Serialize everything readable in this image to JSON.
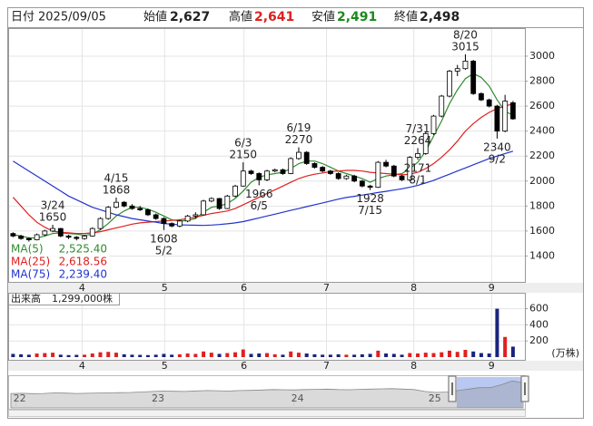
{
  "chart_data": {
    "type": "candlestick",
    "header": {
      "date_label": "日付",
      "date": "2025/09/05",
      "open_label": "始値",
      "open": {
        "value": 2627,
        "label": "2,627"
      },
      "high_label": "高値",
      "high": {
        "value": 2641,
        "label": "2,641"
      },
      "low_label": "安値",
      "low": {
        "value": 2491,
        "label": "2,491"
      },
      "close_label": "終値",
      "close": {
        "value": 2498,
        "label": "2,498"
      }
    },
    "xlim": [
      -0.5,
      64.5
    ],
    "xticks": [
      {
        "value": 8.7,
        "label": "4"
      },
      {
        "value": 19.1,
        "label": "5"
      },
      {
        "value": 29.1,
        "label": "6"
      },
      {
        "value": 39.5,
        "label": "7"
      },
      {
        "value": 50.5,
        "label": "8"
      },
      {
        "value": 60.3,
        "label": "9"
      }
    ],
    "ylim": [
      1200,
      3210
    ],
    "yticks": [
      1400,
      1600,
      1800,
      2000,
      2200,
      2400,
      2600,
      2800,
      3000
    ],
    "grid": true,
    "up_color": "#ffffff",
    "down_color": "#000000",
    "open": [
      1580,
      1560,
      1540,
      1530,
      1570,
      1600,
      1620,
      1560,
      1550,
      1540,
      1560,
      1620,
      1700,
      1790,
      1830,
      1800,
      1780,
      1770,
      1730,
      1700,
      1660,
      1640,
      1680,
      1720,
      1730,
      1840,
      1860,
      1780,
      1880,
      1960,
      2080,
      2060,
      2010,
      2080,
      2090,
      2060,
      2180,
      2230,
      2140,
      2110,
      2080,
      2060,
      2020,
      2040,
      2000,
      1960,
      1950,
      2150,
      2120,
      2040,
      2010,
      2190,
      2220,
      2380,
      2520,
      2680,
      2880,
      2900,
      2960,
      2700,
      2650,
      2600,
      2400,
      2627
    ],
    "high": [
      1590,
      1570,
      1550,
      1580,
      1610,
      1650,
      1625,
      1570,
      1560,
      1570,
      1630,
      1710,
      1800,
      1868,
      1840,
      1815,
      1800,
      1780,
      1740,
      1710,
      1670,
      1690,
      1730,
      1750,
      1850,
      1870,
      1865,
      1890,
      1970,
      2150,
      2090,
      2070,
      2090,
      2100,
      2100,
      2190,
      2270,
      2240,
      2150,
      2120,
      2090,
      2070,
      2050,
      2050,
      2010,
      1970,
      2160,
      2170,
      2130,
      2050,
      2200,
      2264,
      2390,
      2530,
      2690,
      2890,
      2930,
      3015,
      2970,
      2710,
      2660,
      2610,
      2690,
      2641
    ],
    "low": [
      1550,
      1530,
      1515,
      1525,
      1560,
      1590,
      1550,
      1535,
      1525,
      1530,
      1555,
      1610,
      1690,
      1780,
      1790,
      1770,
      1760,
      1720,
      1690,
      1608,
      1630,
      1630,
      1670,
      1700,
      1725,
      1830,
      1770,
      1775,
      1870,
      1955,
      2050,
      1966,
      2000,
      2070,
      2050,
      2055,
      2170,
      2130,
      2100,
      2070,
      2050,
      2010,
      2010,
      1990,
      1950,
      1928,
      1945,
      2110,
      2030,
      2000,
      2000,
      2171,
      2210,
      2370,
      2510,
      2670,
      2840,
      2890,
      2690,
      2640,
      2590,
      2340,
      2390,
      2491
    ],
    "close": [
      1560,
      1540,
      1530,
      1570,
      1600,
      1620,
      1560,
      1550,
      1540,
      1560,
      1620,
      1700,
      1790,
      1830,
      1800,
      1780,
      1770,
      1730,
      1700,
      1660,
      1640,
      1680,
      1720,
      1730,
      1840,
      1860,
      1780,
      1880,
      1960,
      2080,
      2060,
      2010,
      2080,
      2090,
      2060,
      2180,
      2230,
      2140,
      2110,
      2080,
      2060,
      2020,
      2040,
      2000,
      1960,
      1950,
      2150,
      2120,
      2040,
      2010,
      2190,
      2220,
      2380,
      2520,
      2680,
      2880,
      2900,
      2960,
      2700,
      2650,
      2600,
      2400,
      2640,
      2498
    ],
    "series": [
      {
        "name": "MA(5)",
        "color": "#2e8b2e",
        "last": {
          "value": 2525.4,
          "label": "2,525.40"
        },
        "values": [
          1570,
          1560,
          1545,
          1545,
          1560,
          1580,
          1585,
          1580,
          1575,
          1565,
          1575,
          1610,
          1660,
          1720,
          1760,
          1790,
          1790,
          1775,
          1750,
          1720,
          1690,
          1680,
          1685,
          1700,
          1750,
          1790,
          1800,
          1820,
          1860,
          1920,
          1990,
          2030,
          2050,
          2060,
          2070,
          2100,
          2140,
          2160,
          2160,
          2140,
          2110,
          2080,
          2060,
          2040,
          2020,
          1990,
          2020,
          2040,
          2050,
          2060,
          2100,
          2150,
          2240,
          2360,
          2480,
          2620,
          2730,
          2820,
          2860,
          2830,
          2760,
          2650,
          2560,
          2525.4
        ]
      },
      {
        "name": "MA(25)",
        "color": "#e02020",
        "last": {
          "value": 2618.56,
          "label": "2,618.56"
        },
        "values": [
          1870,
          1800,
          1730,
          1670,
          1630,
          1600,
          1590,
          1585,
          1580,
          1580,
          1585,
          1595,
          1610,
          1625,
          1640,
          1655,
          1665,
          1670,
          1675,
          1680,
          1685,
          1690,
          1700,
          1710,
          1725,
          1740,
          1750,
          1760,
          1780,
          1810,
          1840,
          1870,
          1900,
          1930,
          1960,
          1990,
          2020,
          2040,
          2055,
          2065,
          2075,
          2080,
          2085,
          2085,
          2080,
          2070,
          2065,
          2060,
          2055,
          2050,
          2055,
          2070,
          2100,
          2140,
          2190,
          2250,
          2320,
          2400,
          2460,
          2510,
          2550,
          2580,
          2600,
          2618.56
        ]
      },
      {
        "name": "MA(75)",
        "color": "#2233cc",
        "last": {
          "value": 2239.4,
          "label": "2,239.40"
        },
        "values": [
          2160,
          2120,
          2080,
          2040,
          2000,
          1960,
          1920,
          1880,
          1850,
          1820,
          1790,
          1770,
          1750,
          1730,
          1715,
          1700,
          1690,
          1680,
          1670,
          1660,
          1655,
          1650,
          1648,
          1646,
          1645,
          1648,
          1652,
          1658,
          1665,
          1675,
          1690,
          1705,
          1720,
          1735,
          1750,
          1765,
          1780,
          1795,
          1810,
          1825,
          1840,
          1855,
          1868,
          1878,
          1888,
          1898,
          1908,
          1918,
          1928,
          1938,
          1950,
          1965,
          1985,
          2005,
          2030,
          2055,
          2080,
          2105,
          2130,
          2155,
          2180,
          2200,
          2220,
          2239.4
        ]
      }
    ],
    "annotations": [
      {
        "date": "3/24",
        "value": 1650
      },
      {
        "date": "4/15",
        "value": 1868
      },
      {
        "date": "5/2",
        "value": 1608
      },
      {
        "date": "6/3",
        "value": 2150
      },
      {
        "date": "6/5",
        "value": 1966
      },
      {
        "date": "6/19",
        "value": 2270
      },
      {
        "date": "7/15",
        "value": 1928
      },
      {
        "date": "7/31",
        "value": 2264
      },
      {
        "date": "8/1",
        "value": 2171
      },
      {
        "date": "8/20",
        "value": 3015
      },
      {
        "date": "9/2",
        "value": 2340
      }
    ],
    "volume": {
      "title": "出来高",
      "last": {
        "value": 1299000,
        "label": "1,299,000株"
      },
      "unit": "(万株)",
      "ylim": [
        0,
        730
      ],
      "yticks": [
        200,
        400,
        600
      ],
      "up_color": "#e02020",
      "down_color": "#1a237e",
      "values": [
        40,
        35,
        30,
        45,
        50,
        55,
        30,
        25,
        28,
        30,
        45,
        60,
        65,
        55,
        35,
        30,
        28,
        25,
        30,
        40,
        30,
        35,
        45,
        40,
        70,
        55,
        40,
        50,
        60,
        95,
        40,
        45,
        50,
        35,
        30,
        70,
        55,
        45,
        35,
        30,
        30,
        35,
        30,
        30,
        35,
        40,
        80,
        45,
        40,
        30,
        50,
        45,
        55,
        50,
        60,
        80,
        65,
        90,
        70,
        50,
        45,
        600,
        250,
        129.9
      ]
    },
    "navigator": {
      "xlim": [
        0,
        47
      ],
      "ylim": [
        0,
        3200
      ],
      "selection_color": "#b8c8f0",
      "xticks": [
        {
          "value": 0.8,
          "label": "22"
        },
        {
          "value": 13.5,
          "label": "23"
        },
        {
          "value": 26.3,
          "label": "24"
        },
        {
          "value": 38.9,
          "label": "25"
        }
      ],
      "values": [
        1500,
        1520,
        1480,
        1500,
        1550,
        1530,
        1500,
        1520,
        1540,
        1560,
        1580,
        1600,
        1650,
        1700,
        1750,
        1720,
        1700,
        1760,
        1800,
        1780,
        1750,
        1800,
        1820,
        1850,
        1900,
        1880,
        1860,
        1900,
        1920,
        1950,
        1900,
        1880,
        1920,
        1950,
        1980,
        2000,
        1950,
        1900,
        1700,
        1600,
        1650,
        1800,
        1950,
        2100,
        2100,
        2400,
        2800,
        2600
      ]
    }
  }
}
